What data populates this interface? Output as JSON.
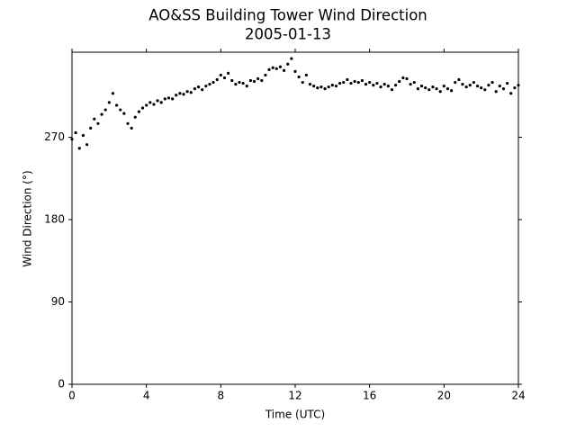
{
  "chart_data": {
    "type": "scatter",
    "title": "AO&SS Building Tower Wind Direction",
    "subtitle": "2005-01-13",
    "x_label": "Time (UTC)",
    "y_label": "Wind Direction (°)",
    "color": "#000000",
    "xlim": [
      0,
      24
    ],
    "xticks": [
      0,
      4,
      8,
      12,
      16,
      20,
      24
    ],
    "ylim": [
      0,
      363
    ],
    "yticks": [
      0,
      90,
      180,
      270
    ],
    "x": [
      0.0,
      0.2,
      0.4,
      0.6,
      0.8,
      1.0,
      1.2,
      1.4,
      1.6,
      1.8,
      2.0,
      2.2,
      2.4,
      2.6,
      2.8,
      3.0,
      3.2,
      3.4,
      3.6,
      3.8,
      4.0,
      4.2,
      4.4,
      4.6,
      4.8,
      5.0,
      5.2,
      5.4,
      5.6,
      5.8,
      6.0,
      6.2,
      6.4,
      6.6,
      6.8,
      7.0,
      7.2,
      7.4,
      7.6,
      7.8,
      8.0,
      8.2,
      8.4,
      8.6,
      8.8,
      9.0,
      9.2,
      9.4,
      9.6,
      9.8,
      10.0,
      10.2,
      10.4,
      10.6,
      10.8,
      11.0,
      11.2,
      11.4,
      11.6,
      11.8,
      12.0,
      12.2,
      12.4,
      12.6,
      12.8,
      13.0,
      13.2,
      13.4,
      13.6,
      13.8,
      14.0,
      14.2,
      14.4,
      14.6,
      14.8,
      15.0,
      15.2,
      15.4,
      15.6,
      15.8,
      16.0,
      16.2,
      16.4,
      16.6,
      16.8,
      17.0,
      17.2,
      17.4,
      17.6,
      17.8,
      18.0,
      18.2,
      18.4,
      18.6,
      18.8,
      19.0,
      19.2,
      19.4,
      19.6,
      19.8,
      20.0,
      20.2,
      20.4,
      20.6,
      20.8,
      21.0,
      21.2,
      21.4,
      21.6,
      21.8,
      22.0,
      22.2,
      22.4,
      22.6,
      22.8,
      23.0,
      23.2,
      23.4,
      23.6,
      23.8,
      24.0
    ],
    "values": [
      268,
      275,
      258,
      272,
      262,
      280,
      290,
      285,
      295,
      300,
      308,
      318,
      305,
      300,
      296,
      285,
      280,
      292,
      298,
      302,
      305,
      308,
      306,
      310,
      308,
      312,
      313,
      312,
      316,
      318,
      317,
      320,
      319,
      323,
      325,
      322,
      326,
      328,
      330,
      333,
      338,
      335,
      340,
      332,
      328,
      330,
      329,
      326,
      332,
      331,
      334,
      332,
      338,
      344,
      346,
      345,
      347,
      343,
      350,
      356,
      342,
      336,
      330,
      338,
      328,
      326,
      324,
      325,
      323,
      325,
      327,
      326,
      329,
      330,
      333,
      329,
      331,
      330,
      332,
      328,
      330,
      327,
      329,
      325,
      328,
      326,
      322,
      327,
      331,
      335,
      334,
      328,
      330,
      323,
      326,
      324,
      322,
      325,
      323,
      320,
      326,
      323,
      321,
      330,
      333,
      328,
      325,
      327,
      330,
      326,
      324,
      322,
      327,
      330,
      320,
      326,
      323,
      329,
      318,
      324,
      327
    ]
  }
}
